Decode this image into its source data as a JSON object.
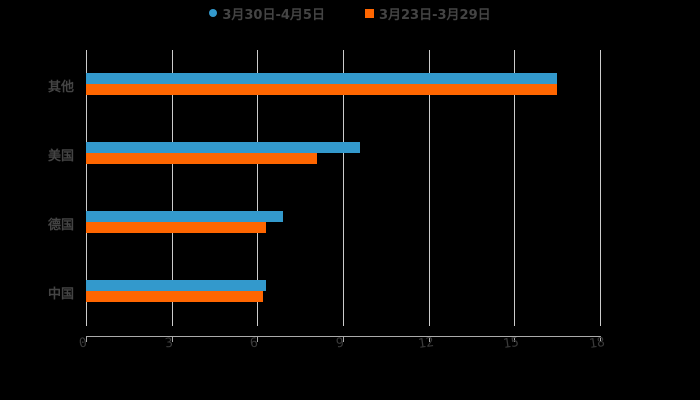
{
  "chart_data": {
    "type": "bar",
    "orientation": "horizontal",
    "title": "",
    "xlabel": "",
    "ylabel": "",
    "xlim": [
      0,
      18
    ],
    "x_ticks": [
      "0",
      "3",
      "6",
      "9",
      "12",
      "15",
      "18"
    ],
    "grid": true,
    "legend_position": "top",
    "categories": [
      "其他",
      "美国",
      "德国",
      "中国"
    ],
    "series": [
      {
        "name": "3月30日-4月5日",
        "color": "#3399cc",
        "values": [
          16.5,
          9.6,
          6.9,
          6.3
        ]
      },
      {
        "name": "3月23日-3月29日",
        "color": "#ff6600",
        "values": [
          16.5,
          8.1,
          6.3,
          6.2
        ]
      }
    ]
  },
  "legend": {
    "items": [
      {
        "label": "3月30日-4月5日",
        "color": "#3399cc",
        "marker": "circle"
      },
      {
        "label": "3月23日-3月29日",
        "color": "#ff6600",
        "marker": "square"
      }
    ]
  }
}
